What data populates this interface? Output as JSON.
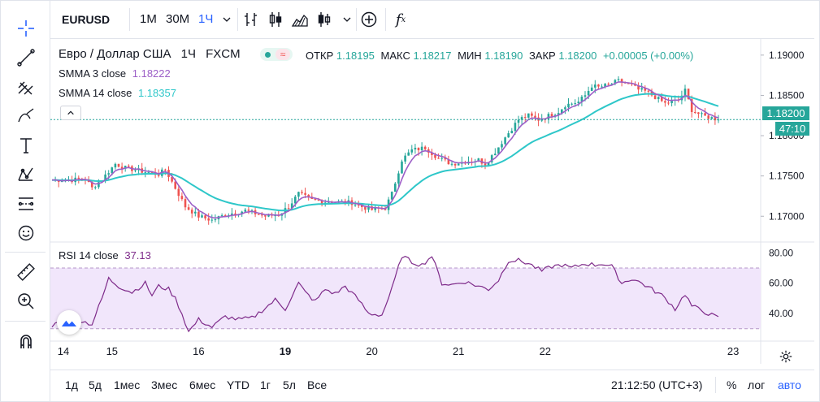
{
  "toolbar": {
    "symbol": "EURUSD",
    "intervals": [
      "1М",
      "30М",
      "1Ч"
    ],
    "fx_label": "f",
    "fx_sub": "x"
  },
  "legend": {
    "title": "Евро / Доллар США",
    "interval": "1Ч",
    "source": "FXCM",
    "open_label": "ОТКР",
    "open": "1.18195",
    "high_label": "МАКС",
    "high": "1.18217",
    "low_label": "МИН",
    "low": "1.18190",
    "close_label": "ЗАКР",
    "close": "1.18200",
    "change": "+0.00005 (+0.00%)",
    "smma3_name": "SMMA",
    "smma3_params": "3 close",
    "smma3_value": "1.18222",
    "smma14_name": "SMMA",
    "smma14_params": "14 close",
    "smma14_value": "1.18357",
    "rsi_name": "RSI",
    "rsi_params": "14 close",
    "rsi_value": "37.13"
  },
  "price_badge": {
    "price": "1.18200",
    "countdown": "47:10"
  },
  "bottom": {
    "ranges": [
      "1д",
      "5д",
      "1мес",
      "3мес",
      "6мес",
      "YTD",
      "1г",
      "5л",
      "Все"
    ],
    "time": "21:12:50 (UTC+3)",
    "percent": "%",
    "log": "лог",
    "auto": "авто"
  },
  "colors": {
    "up": "#26a69a",
    "down": "#ef5350",
    "smma3": "#9c5fc7",
    "smma14": "#2ec7c9",
    "rsi": "#7e2b8a",
    "rsi_band": "#f1e6fb",
    "accent": "#2962ff"
  },
  "chart_data": {
    "type": "candlestick",
    "symbol": "EURUSD",
    "interval": "1Ч",
    "x_ticks": [
      "14",
      "15",
      "16",
      "19",
      "20",
      "21",
      "22",
      "23"
    ],
    "price_ticks": [
      "1.19000",
      "1.18500",
      "1.18000",
      "1.17500",
      "1.17000"
    ],
    "price_range": [
      1.1668,
      1.192
    ],
    "rsi_ticks": [
      "80.00",
      "60.00",
      "40.00"
    ],
    "rsi_range": [
      24,
      85
    ],
    "rsi_band": [
      30,
      70
    ],
    "anchors": [
      [
        0,
        1.1745
      ],
      [
        6,
        1.1745
      ],
      [
        10,
        1.1747
      ],
      [
        12,
        1.1735
      ],
      [
        15,
        1.1746
      ],
      [
        19,
        1.1765
      ],
      [
        22,
        1.176
      ],
      [
        28,
        1.1755
      ],
      [
        32,
        1.1752
      ],
      [
        34,
        1.1758
      ],
      [
        37,
        1.1735
      ],
      [
        40,
        1.1712
      ],
      [
        44,
        1.17
      ],
      [
        48,
        1.1695
      ],
      [
        52,
        1.1702
      ],
      [
        58,
        1.1707
      ],
      [
        64,
        1.17
      ],
      [
        68,
        1.1702
      ],
      [
        71,
        1.1712
      ],
      [
        74,
        1.1728
      ],
      [
        78,
        1.172
      ],
      [
        82,
        1.1718
      ],
      [
        90,
        1.1717
      ],
      [
        92,
        1.1713
      ],
      [
        96,
        1.1708
      ],
      [
        100,
        1.171
      ],
      [
        102,
        1.1728
      ],
      [
        105,
        1.177
      ],
      [
        108,
        1.1782
      ],
      [
        112,
        1.1785
      ],
      [
        116,
        1.1772
      ],
      [
        120,
        1.1765
      ],
      [
        124,
        1.1768
      ],
      [
        128,
        1.177
      ],
      [
        130,
        1.1765
      ],
      [
        133,
        1.178
      ],
      [
        136,
        1.1798
      ],
      [
        140,
        1.182
      ],
      [
        143,
        1.1825
      ],
      [
        146,
        1.182
      ],
      [
        148,
        1.1823
      ],
      [
        152,
        1.183
      ],
      [
        154,
        1.1838
      ],
      [
        158,
        1.1842
      ],
      [
        160,
        1.185
      ],
      [
        162,
        1.1862
      ],
      [
        164,
        1.186
      ],
      [
        167,
        1.1863
      ],
      [
        170,
        1.1868
      ],
      [
        172,
        1.1865
      ],
      [
        174,
        1.1862
      ],
      [
        176,
        1.1857
      ],
      [
        178,
        1.1855
      ],
      [
        181,
        1.1848
      ],
      [
        184,
        1.184
      ],
      [
        188,
        1.1844
      ],
      [
        190,
        1.1856
      ],
      [
        192,
        1.1832
      ],
      [
        195,
        1.1825
      ],
      [
        198,
        1.1822
      ],
      [
        200,
        1.182
      ]
    ],
    "rsi_anchors": [
      [
        0,
        31
      ],
      [
        3,
        38
      ],
      [
        6,
        37
      ],
      [
        9,
        35
      ],
      [
        12,
        33
      ],
      [
        15,
        50
      ],
      [
        17,
        63
      ],
      [
        20,
        58
      ],
      [
        24,
        54
      ],
      [
        28,
        60
      ],
      [
        30,
        52
      ],
      [
        32,
        58
      ],
      [
        35,
        56
      ],
      [
        37,
        50
      ],
      [
        39,
        40
      ],
      [
        41,
        28
      ],
      [
        44,
        36
      ],
      [
        48,
        31
      ],
      [
        52,
        38
      ],
      [
        56,
        36
      ],
      [
        60,
        37
      ],
      [
        63,
        42
      ],
      [
        67,
        49
      ],
      [
        70,
        43
      ],
      [
        74,
        60
      ],
      [
        76,
        54
      ],
      [
        79,
        48
      ],
      [
        82,
        56
      ],
      [
        85,
        53
      ],
      [
        88,
        58
      ],
      [
        92,
        49
      ],
      [
        95,
        40
      ],
      [
        99,
        39
      ],
      [
        102,
        56
      ],
      [
        105,
        78
      ],
      [
        108,
        74
      ],
      [
        111,
        72
      ],
      [
        114,
        78
      ],
      [
        117,
        60
      ],
      [
        120,
        59
      ],
      [
        124,
        61
      ],
      [
        128,
        58
      ],
      [
        131,
        56
      ],
      [
        134,
        62
      ],
      [
        137,
        75
      ],
      [
        140,
        75
      ],
      [
        143,
        73
      ],
      [
        147,
        68
      ],
      [
        150,
        71
      ],
      [
        153,
        72
      ],
      [
        156,
        70
      ],
      [
        160,
        73
      ],
      [
        163,
        72
      ],
      [
        165,
        73
      ],
      [
        168,
        71
      ],
      [
        171,
        60
      ],
      [
        174,
        63
      ],
      [
        177,
        60
      ],
      [
        180,
        56
      ],
      [
        183,
        52
      ],
      [
        185,
        48
      ],
      [
        187,
        43
      ],
      [
        190,
        53
      ],
      [
        192,
        45
      ],
      [
        195,
        42
      ],
      [
        197,
        40
      ],
      [
        199,
        38
      ],
      [
        200,
        37
      ]
    ]
  }
}
